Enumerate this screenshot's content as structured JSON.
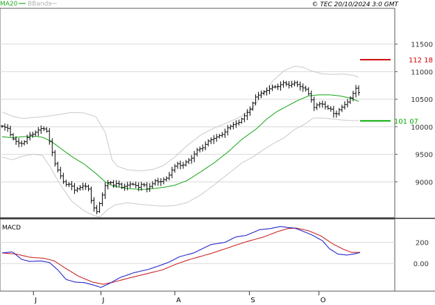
{
  "legend": {
    "ma_label": "MA20",
    "bb_label": "BBands"
  },
  "copyright": "© TEC 20/10/2024 3:0 GMT",
  "macd_label": "MACD",
  "colors": {
    "ma": "#22aa22",
    "bands": "#c8c8c8",
    "price": "#000000",
    "macd": "#2222cc",
    "signal": "#cc2222",
    "resistance": "#cc0000",
    "support": "#00aa00",
    "grid": "#d8d8d8"
  },
  "chart_data": [
    {
      "type": "ohlc",
      "ylim": [
        8350,
        12150
      ],
      "y_ticks": [
        {
          "value": 11500,
          "label": "11500"
        },
        {
          "value": 11000,
          "label": "11000"
        },
        {
          "value": 10500,
          "label": "10500"
        },
        {
          "value": 10000,
          "label": "10000"
        },
        {
          "value": 9500,
          "label": "9500"
        },
        {
          "value": 9000,
          "label": "9000"
        }
      ],
      "x_months": [
        "J",
        "J",
        "A",
        "S",
        "O"
      ],
      "resistance": {
        "value": 11218,
        "label": "112 18"
      },
      "support": {
        "value": 10107,
        "label": "101 07"
      },
      "series": [
        {
          "name": "MA20",
          "anchors": [
            [
              0,
              9820
            ],
            [
              15,
              9800
            ],
            [
              30,
              9820
            ],
            [
              45,
              9830
            ],
            [
              58,
              9810
            ],
            [
              70,
              9740
            ],
            [
              85,
              9600
            ],
            [
              100,
              9460
            ],
            [
              118,
              9320
            ],
            [
              135,
              9150
            ],
            [
              148,
              9000
            ],
            [
              160,
              8920
            ],
            [
              180,
              8880
            ],
            [
              200,
              8860
            ],
            [
              218,
              8880
            ],
            [
              232,
              8900
            ],
            [
              248,
              8940
            ],
            [
              265,
              9020
            ],
            [
              285,
              9180
            ],
            [
              305,
              9350
            ],
            [
              325,
              9550
            ],
            [
              345,
              9780
            ],
            [
              365,
              9960
            ],
            [
              380,
              10140
            ],
            [
              395,
              10280
            ],
            [
              410,
              10380
            ],
            [
              425,
              10480
            ],
            [
              440,
              10560
            ],
            [
              455,
              10580
            ],
            [
              470,
              10580
            ],
            [
              485,
              10560
            ],
            [
              500,
              10520
            ],
            [
              512,
              10460
            ]
          ]
        },
        {
          "name": "BBands upper",
          "anchors": [
            [
              0,
              10270
            ],
            [
              15,
              10190
            ],
            [
              30,
              10150
            ],
            [
              45,
              10170
            ],
            [
              58,
              10180
            ],
            [
              70,
              10200
            ],
            [
              85,
              10230
            ],
            [
              100,
              10260
            ],
            [
              118,
              10250
            ],
            [
              135,
              10180
            ],
            [
              148,
              9900
            ],
            [
              158,
              9400
            ],
            [
              166,
              9280
            ],
            [
              180,
              9220
            ],
            [
              200,
              9200
            ],
            [
              218,
              9230
            ],
            [
              232,
              9300
            ],
            [
              248,
              9450
            ],
            [
              265,
              9650
            ],
            [
              285,
              9850
            ],
            [
              305,
              9980
            ],
            [
              325,
              10080
            ],
            [
              345,
              10200
            ],
            [
              360,
              10350
            ],
            [
              375,
              10600
            ],
            [
              390,
              10850
            ],
            [
              405,
              11020
            ],
            [
              420,
              11100
            ],
            [
              432,
              11080
            ],
            [
              445,
              11010
            ],
            [
              460,
              10960
            ],
            [
              475,
              10950
            ],
            [
              490,
              10960
            ],
            [
              505,
              10930
            ],
            [
              512,
              10900
            ]
          ]
        },
        {
          "name": "BBands lower",
          "anchors": [
            [
              0,
              9450
            ],
            [
              15,
              9400
            ],
            [
              30,
              9470
            ],
            [
              45,
              9500
            ],
            [
              58,
              9480
            ],
            [
              70,
              9250
            ],
            [
              85,
              8920
            ],
            [
              100,
              8650
            ],
            [
              118,
              8470
            ],
            [
              130,
              8400
            ],
            [
              140,
              8360
            ],
            [
              152,
              8500
            ],
            [
              162,
              8580
            ],
            [
              180,
              8620
            ],
            [
              200,
              8590
            ],
            [
              218,
              8570
            ],
            [
              232,
              8560
            ],
            [
              248,
              8570
            ],
            [
              265,
              8620
            ],
            [
              285,
              8760
            ],
            [
              305,
              8950
            ],
            [
              325,
              9150
            ],
            [
              345,
              9350
            ],
            [
              360,
              9450
            ],
            [
              375,
              9580
            ],
            [
              390,
              9700
            ],
            [
              405,
              9800
            ],
            [
              420,
              9950
            ],
            [
              435,
              10050
            ],
            [
              447,
              10160
            ],
            [
              460,
              10160
            ],
            [
              475,
              10140
            ],
            [
              490,
              10120
            ],
            [
              505,
              10110
            ],
            [
              512,
              10120
            ]
          ]
        },
        {
          "name": "Close",
          "anchors": [
            [
              0,
              10010
            ],
            [
              8,
              9970
            ],
            [
              14,
              9800
            ],
            [
              22,
              9710
            ],
            [
              30,
              9690
            ],
            [
              38,
              9840
            ],
            [
              45,
              9870
            ],
            [
              52,
              9940
            ],
            [
              58,
              9980
            ],
            [
              64,
              9920
            ],
            [
              70,
              9640
            ],
            [
              76,
              9330
            ],
            [
              82,
              9160
            ],
            [
              90,
              8950
            ],
            [
              98,
              8960
            ],
            [
              104,
              8850
            ],
            [
              112,
              8900
            ],
            [
              118,
              8940
            ],
            [
              124,
              8870
            ],
            [
              130,
              8560
            ],
            [
              136,
              8460
            ],
            [
              142,
              8680
            ],
            [
              148,
              8930
            ],
            [
              154,
              9010
            ],
            [
              160,
              8940
            ],
            [
              166,
              8990
            ],
            [
              172,
              8900
            ],
            [
              178,
              8930
            ],
            [
              184,
              8960
            ],
            [
              190,
              8950
            ],
            [
              196,
              8900
            ],
            [
              202,
              8980
            ],
            [
              208,
              8870
            ],
            [
              214,
              8940
            ],
            [
              220,
              9020
            ],
            [
              226,
              8990
            ],
            [
              232,
              9040
            ],
            [
              238,
              9080
            ],
            [
              246,
              9260
            ],
            [
              252,
              9330
            ],
            [
              258,
              9280
            ],
            [
              264,
              9360
            ],
            [
              272,
              9430
            ],
            [
              280,
              9580
            ],
            [
              288,
              9620
            ],
            [
              296,
              9740
            ],
            [
              304,
              9790
            ],
            [
              312,
              9840
            ],
            [
              318,
              9870
            ],
            [
              324,
              9980
            ],
            [
              332,
              10040
            ],
            [
              340,
              10080
            ],
            [
              348,
              10200
            ],
            [
              356,
              10320
            ],
            [
              364,
              10540
            ],
            [
              372,
              10610
            ],
            [
              380,
              10660
            ],
            [
              388,
              10720
            ],
            [
              396,
              10730
            ],
            [
              404,
              10800
            ],
            [
              412,
              10750
            ],
            [
              420,
              10800
            ],
            [
              428,
              10730
            ],
            [
              436,
              10680
            ],
            [
              442,
              10560
            ],
            [
              448,
              10350
            ],
            [
              454,
              10420
            ],
            [
              460,
              10410
            ],
            [
              466,
              10340
            ],
            [
              472,
              10320
            ],
            [
              478,
              10200
            ],
            [
              484,
              10310
            ],
            [
              490,
              10380
            ],
            [
              496,
              10450
            ],
            [
              502,
              10560
            ],
            [
              508,
              10700
            ],
            [
              512,
              10620
            ]
          ]
        }
      ]
    },
    {
      "type": "line",
      "name": "MACD",
      "ylim": [
        -260,
        420
      ],
      "y_ticks": [
        {
          "value": 200,
          "label": "200"
        },
        {
          "value": 0,
          "label": "0.00"
        }
      ],
      "series": [
        {
          "name": "MACD",
          "anchors": [
            [
              0,
              100
            ],
            [
              15,
              110
            ],
            [
              28,
              40
            ],
            [
              40,
              20
            ],
            [
              55,
              25
            ],
            [
              68,
              10
            ],
            [
              80,
              -60
            ],
            [
              92,
              -150
            ],
            [
              105,
              -175
            ],
            [
              118,
              -180
            ],
            [
              130,
              -200
            ],
            [
              142,
              -225
            ],
            [
              155,
              -185
            ],
            [
              170,
              -130
            ],
            [
              190,
              -85
            ],
            [
              210,
              -55
            ],
            [
              228,
              -15
            ],
            [
              240,
              15
            ],
            [
              255,
              65
            ],
            [
              275,
              100
            ],
            [
              300,
              180
            ],
            [
              320,
              200
            ],
            [
              335,
              250
            ],
            [
              350,
              265
            ],
            [
              370,
              320
            ],
            [
              385,
              330
            ],
            [
              400,
              350
            ],
            [
              410,
              340
            ],
            [
              420,
              335
            ],
            [
              430,
              310
            ],
            [
              445,
              270
            ],
            [
              460,
              215
            ],
            [
              470,
              140
            ],
            [
              482,
              90
            ],
            [
              495,
              80
            ],
            [
              505,
              90
            ],
            [
              514,
              105
            ]
          ]
        },
        {
          "name": "Signal",
          "anchors": [
            [
              0,
              100
            ],
            [
              20,
              90
            ],
            [
              40,
              60
            ],
            [
              60,
              50
            ],
            [
              75,
              25
            ],
            [
              90,
              -40
            ],
            [
              110,
              -120
            ],
            [
              130,
              -175
            ],
            [
              145,
              -195
            ],
            [
              160,
              -175
            ],
            [
              180,
              -140
            ],
            [
              205,
              -100
            ],
            [
              230,
              -60
            ],
            [
              250,
              -5
            ],
            [
              270,
              40
            ],
            [
              300,
              95
            ],
            [
              325,
              150
            ],
            [
              350,
              205
            ],
            [
              375,
              250
            ],
            [
              395,
              300
            ],
            [
              410,
              330
            ],
            [
              422,
              335
            ],
            [
              440,
              310
            ],
            [
              458,
              260
            ],
            [
              475,
              185
            ],
            [
              490,
              135
            ],
            [
              502,
              105
            ],
            [
              514,
              105
            ]
          ]
        }
      ]
    }
  ]
}
